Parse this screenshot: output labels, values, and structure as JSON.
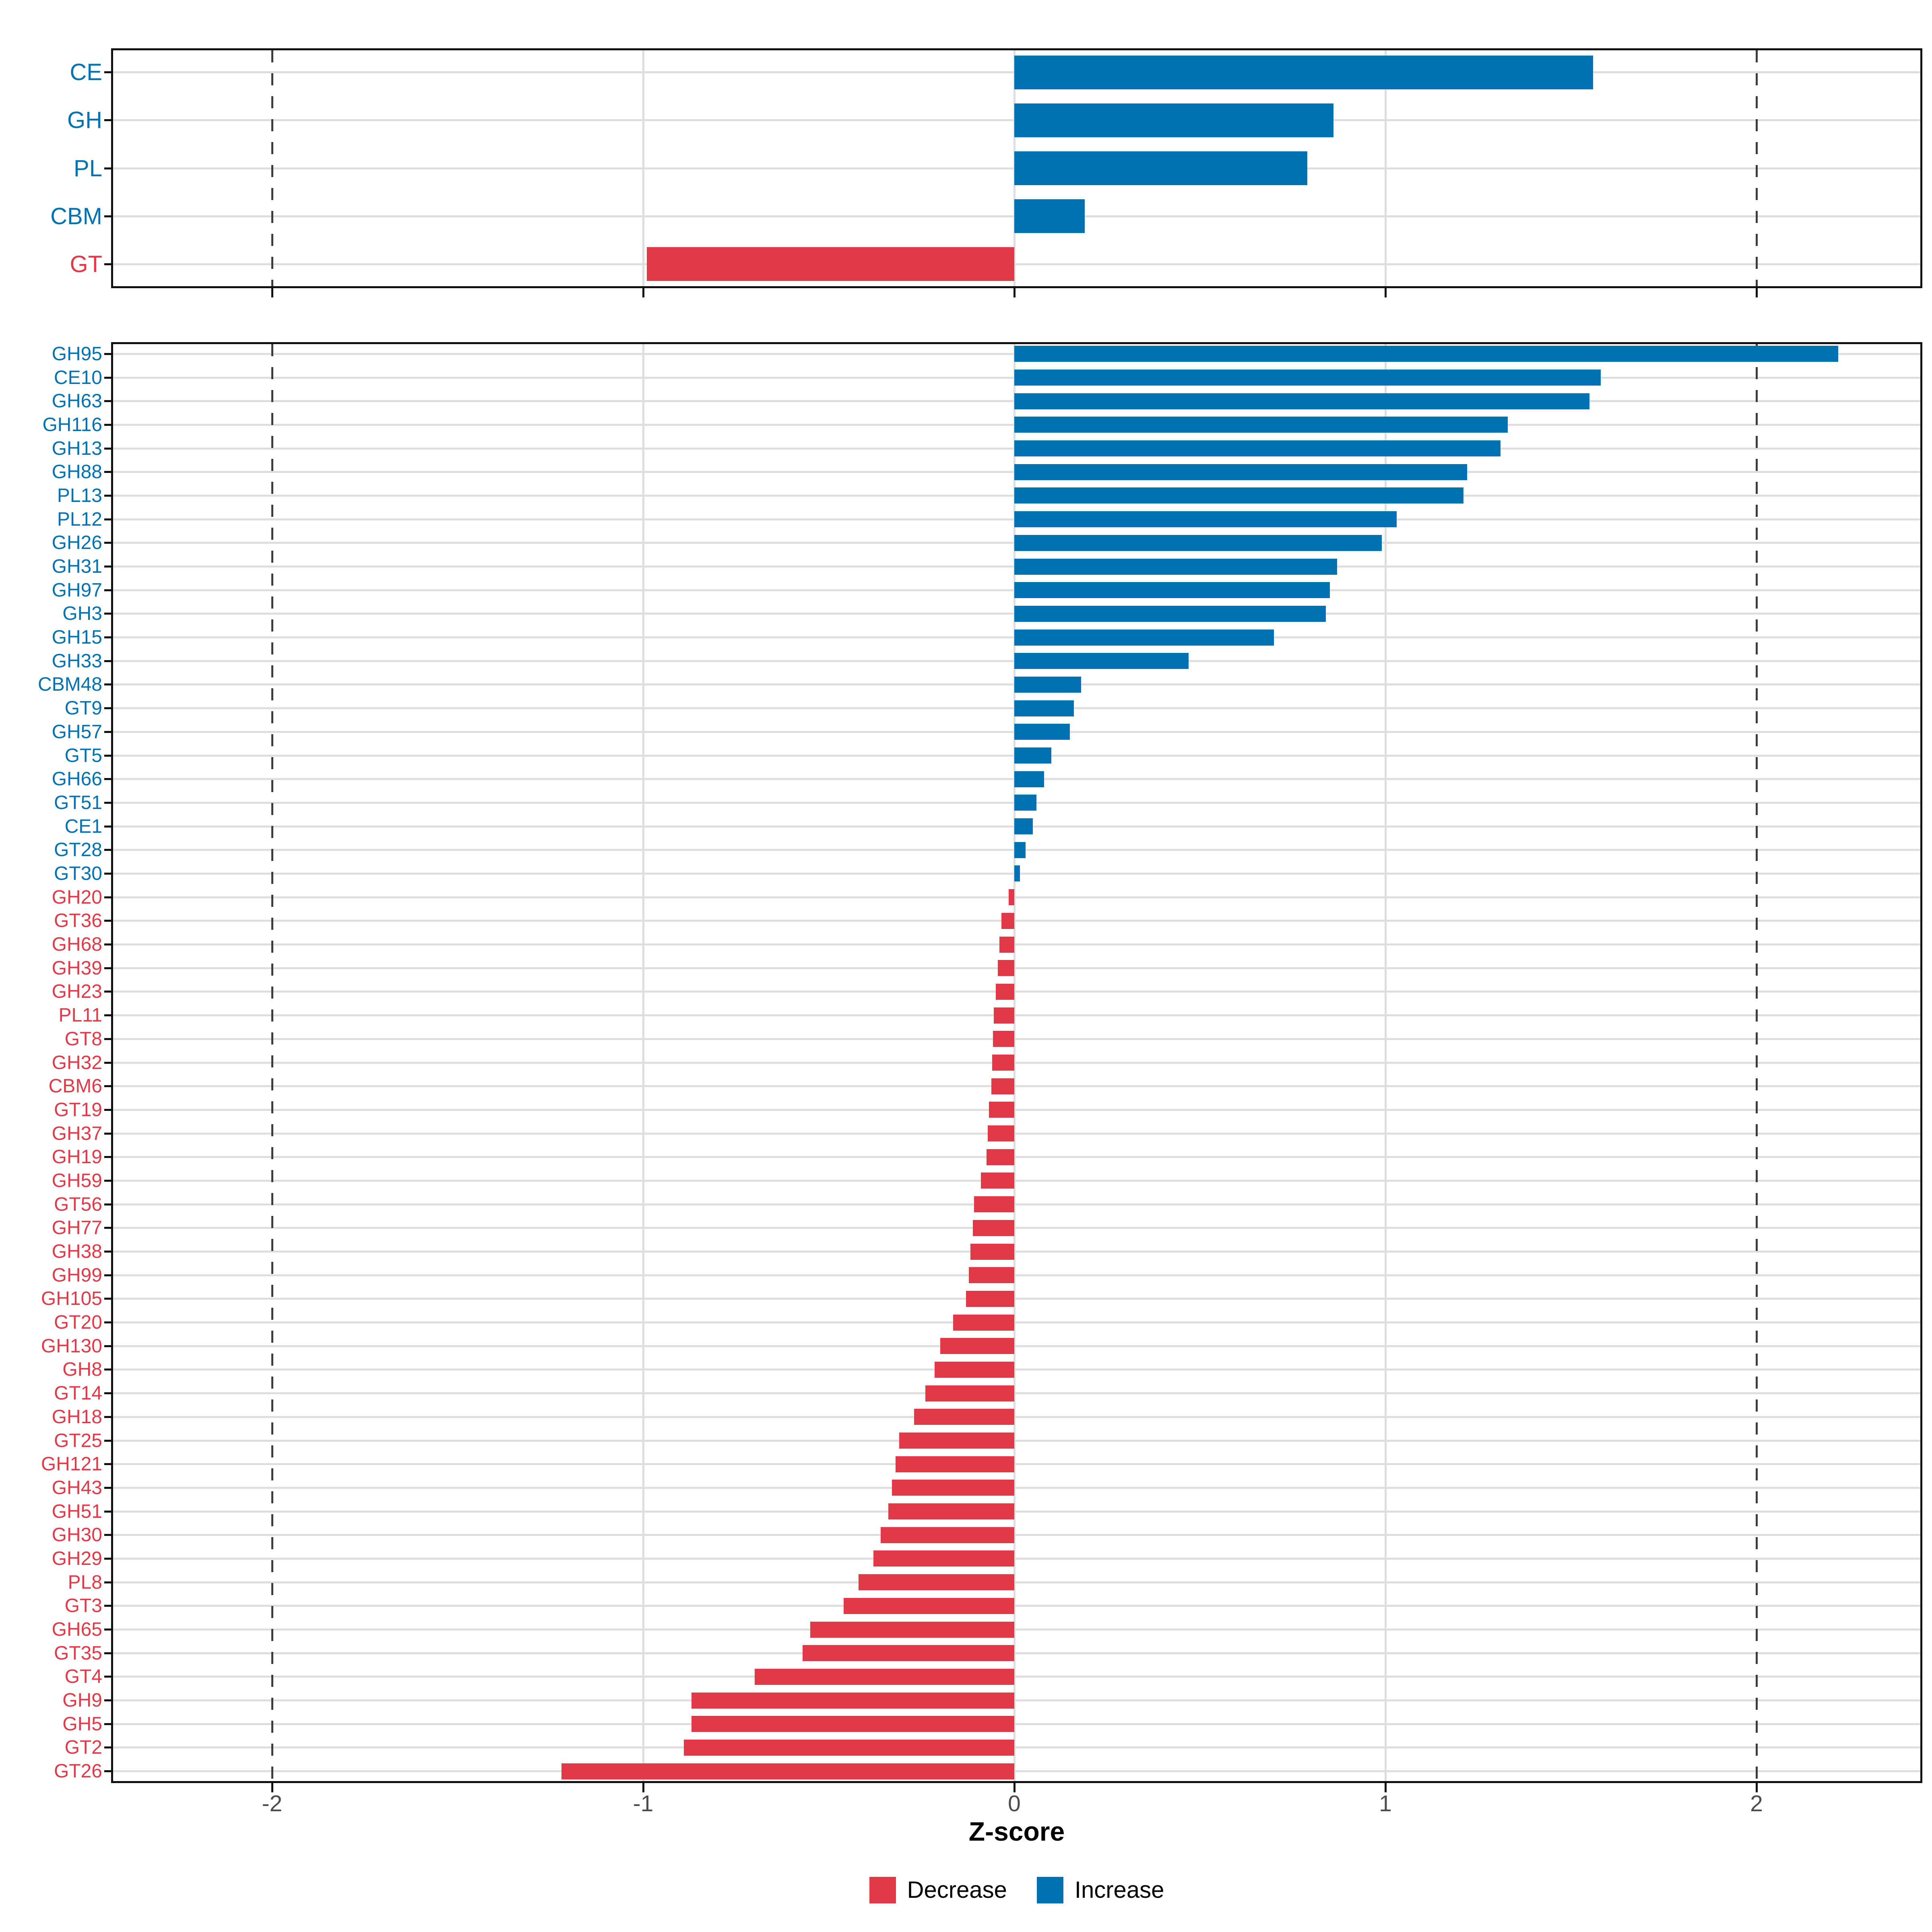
{
  "chart_data": {
    "type": "bar",
    "orientation": "horizontal",
    "title": "",
    "xlabel": "Z-score",
    "ylabel": "",
    "xlim": [
      -2.44,
      2.44
    ],
    "x_ticks": {
      "values": [
        -2,
        -1,
        0,
        1,
        2
      ],
      "labels": [
        "-2",
        "-1",
        "0",
        "1",
        "2"
      ]
    },
    "solid_gridline_values": [
      -1,
      0,
      1
    ],
    "dashed_line_values": [
      -2,
      2
    ],
    "grid": "on",
    "legend_position": "bottom",
    "panels": [
      {
        "name": "enzyme-class-summary",
        "categories": [
          "CE",
          "GH",
          "PL",
          "CBM",
          "GT"
        ],
        "values": [
          1.56,
          0.86,
          0.79,
          0.19,
          -0.99
        ]
      },
      {
        "name": "enzyme-families",
        "categories": [
          "GH95",
          "CE10",
          "GH63",
          "GH116",
          "GH13",
          "GH88",
          "PL13",
          "PL12",
          "GH26",
          "GH31",
          "GH97",
          "GH3",
          "GH15",
          "GH33",
          "CBM48",
          "GT9",
          "GH57",
          "GT5",
          "GH66",
          "GT51",
          "CE1",
          "GT28",
          "GT30",
          "GH20",
          "GT36",
          "GH68",
          "GH39",
          "GH23",
          "PL11",
          "GT8",
          "GH32",
          "CBM6",
          "GT19",
          "GH37",
          "GH19",
          "GH59",
          "GT56",
          "GH77",
          "GH38",
          "GH99",
          "GH105",
          "GT20",
          "GH130",
          "GH8",
          "GT14",
          "GH18",
          "GT25",
          "GH121",
          "GH43",
          "GH51",
          "GH30",
          "GH29",
          "PL8",
          "GT3",
          "GH65",
          "GT35",
          "GT4",
          "GH9",
          "GH5",
          "GT2",
          "GT26"
        ],
        "values": [
          2.22,
          1.58,
          1.55,
          1.33,
          1.31,
          1.22,
          1.21,
          1.03,
          0.99,
          0.87,
          0.85,
          0.84,
          0.7,
          0.47,
          0.18,
          0.16,
          0.15,
          0.1,
          0.08,
          0.06,
          0.05,
          0.03,
          0.015,
          -0.015,
          -0.035,
          -0.04,
          -0.045,
          -0.05,
          -0.055,
          -0.058,
          -0.06,
          -0.062,
          -0.068,
          -0.072,
          -0.075,
          -0.09,
          -0.108,
          -0.112,
          -0.118,
          -0.123,
          -0.13,
          -0.165,
          -0.2,
          -0.215,
          -0.24,
          -0.27,
          -0.31,
          -0.32,
          -0.33,
          -0.34,
          -0.36,
          -0.38,
          -0.42,
          -0.46,
          -0.55,
          -0.57,
          -0.7,
          -0.87,
          -0.87,
          -0.89,
          -1.22
        ]
      }
    ],
    "legend": [
      {
        "label": "Decrease",
        "color": "#e23948"
      },
      {
        "label": "Increase",
        "color": "#0072b2"
      }
    ]
  },
  "colors": {
    "increase": "#0072b2",
    "decrease": "#e23948",
    "grid": "#dedede",
    "dashed_line": "#3d3d3d",
    "tick_text": "#4d4d4d",
    "panel_border": "#101010"
  }
}
